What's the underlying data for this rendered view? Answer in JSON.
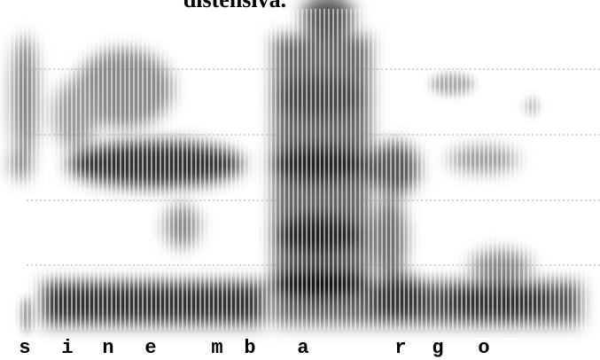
{
  "header": {
    "title": "distensiva."
  },
  "segments": [
    "s",
    "i",
    "n",
    "e",
    "m",
    "b",
    "a",
    "r",
    "g",
    "o"
  ]
}
